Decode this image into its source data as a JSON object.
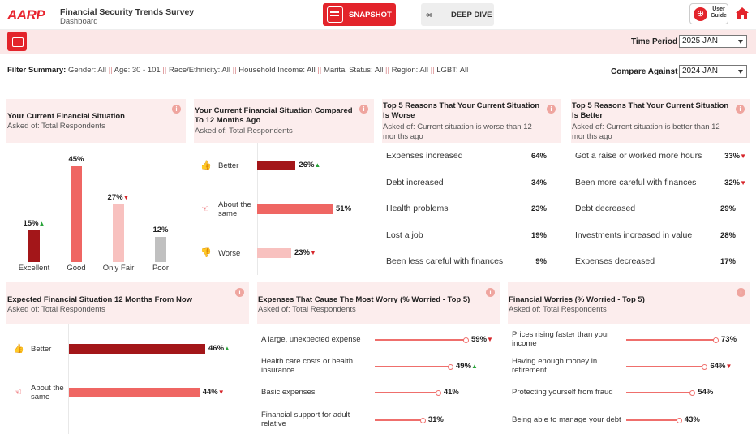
{
  "header": {
    "logo": "AARP",
    "title": "Financial Security Trends Survey",
    "subtitle": "Dashboard",
    "snapshot_label": "SNAPSHOT",
    "deepdive_label": "DEEP DIVE",
    "user_guide_label_1": "User",
    "user_guide_label_2": "Guide"
  },
  "filters": {
    "time_period_label": "Time Period",
    "time_period_value": "2025 JAN",
    "compare_label": "Compare Against",
    "compare_value": "2024 JAN",
    "summary_label": "Filter Summary:",
    "summary_items": [
      "Gender: All",
      "Age: 30 - 101",
      "Race/Ethnicity: All",
      "Household Income: All",
      "Marital Status: All",
      "Region: All",
      "LGBT: All"
    ],
    "separator": "||"
  },
  "card1": {
    "title": "Your Current Financial Situation",
    "subtitle": "Asked of: Total Respondents",
    "info": "i",
    "chart_data": {
      "type": "bar",
      "categories": [
        "Excellent",
        "Good",
        "Only Fair",
        "Poor"
      ],
      "values": [
        15,
        45,
        27,
        12
      ],
      "value_labels": [
        "15%",
        "45%",
        "27%",
        "12%"
      ],
      "trends": [
        "up",
        "",
        "down",
        ""
      ],
      "colors": [
        "#a31619",
        "#ef6663",
        "#f8c1bf",
        "#c0c0c0"
      ],
      "ylim": [
        0,
        45
      ]
    }
  },
  "card2": {
    "title_1": "Your Current Financial Situation Compared",
    "title_2": "To 12 Months Ago",
    "subtitle": "Asked of: Total Respondents",
    "info": "i",
    "chart_data": {
      "type": "bar",
      "categories": [
        "Better",
        "About the same",
        "Worse"
      ],
      "values": [
        26,
        51,
        23
      ],
      "value_labels": [
        "26%",
        "51%",
        "23%"
      ],
      "trends": [
        "up",
        "",
        "down"
      ],
      "colors": [
        "#a31619",
        "#ef6663",
        "#f8c1bf"
      ],
      "icons": [
        "thumbs-up-icon",
        "hand-point-icon",
        "thumbs-down-icon"
      ],
      "xlim": [
        0,
        51
      ]
    }
  },
  "card3": {
    "title_1": "Top 5 Reasons That Your Current Situation",
    "title_2": "Is Worse",
    "subtitle_1": "Asked of: Current situation is worse than 12",
    "subtitle_2": "months ago",
    "info": "i",
    "rows": [
      {
        "label": "Expenses increased",
        "value": "64%",
        "trend": ""
      },
      {
        "label": "Debt increased",
        "value": "34%",
        "trend": ""
      },
      {
        "label": "Health problems",
        "value": "23%",
        "trend": ""
      },
      {
        "label": "Lost a job",
        "value": "19%",
        "trend": ""
      },
      {
        "label": "Been less careful with finances",
        "value": "9%",
        "trend": ""
      }
    ]
  },
  "card4": {
    "title_1": "Top 5 Reasons That Your Current Situation",
    "title_2": "Is Better",
    "subtitle_1": "Asked of: Current situation is better than 12",
    "subtitle_2": "months ago",
    "info": "i",
    "rows": [
      {
        "label": "Got a raise or worked more hours",
        "value": "33%",
        "trend": "down"
      },
      {
        "label": "Been more careful with finances",
        "value": "32%",
        "trend": "down"
      },
      {
        "label": "Debt decreased",
        "value": "29%",
        "trend": ""
      },
      {
        "label": "Investments increased in value",
        "value": "28%",
        "trend": ""
      },
      {
        "label": "Expenses decreased",
        "value": "17%",
        "trend": ""
      }
    ]
  },
  "card5": {
    "title": "Expected Financial Situation 12 Months From Now",
    "subtitle": "Asked of: Total Respondents",
    "info": "i",
    "chart_data": {
      "type": "bar",
      "categories": [
        "Better",
        "About the same"
      ],
      "values": [
        46,
        44
      ],
      "value_labels": [
        "46%",
        "44%"
      ],
      "trends": [
        "up",
        "down"
      ],
      "colors": [
        "#a31619",
        "#ef6663"
      ],
      "icons": [
        "thumbs-up-icon",
        "hand-point-icon"
      ],
      "xlim": [
        0,
        46
      ]
    }
  },
  "card6": {
    "title": "Expenses That Cause The Most Worry (% Worried - Top 5)",
    "subtitle": "Asked of: Total Respondents",
    "info": "i",
    "chart_data": {
      "type": "bar",
      "categories": [
        "A large, unexpected expense",
        "Health care costs or health insurance",
        "Basic expenses",
        "Financial support for adult relative"
      ],
      "values": [
        59,
        49,
        41,
        31
      ],
      "value_labels": [
        "59%",
        "49%",
        "41%",
        "31%"
      ],
      "trends": [
        "down",
        "up",
        "",
        ""
      ],
      "xlim": [
        0,
        59
      ]
    }
  },
  "card7": {
    "title": "Financial Worries (% Worried - Top 5)",
    "subtitle": "Asked of: Total Respondents",
    "info": "i",
    "chart_data": {
      "type": "bar",
      "categories": [
        "Prices rising faster than your income",
        "Having enough money in retirement",
        "Protecting yourself from fraud",
        "Being able to manage your debt"
      ],
      "values": [
        73,
        64,
        54,
        43
      ],
      "value_labels": [
        "73%",
        "64%",
        "54%",
        "43%"
      ],
      "trends": [
        "",
        "down",
        "",
        ""
      ],
      "xlim": [
        0,
        73
      ]
    }
  },
  "trend_glyphs": {
    "up": "▲",
    "down": "▼"
  }
}
